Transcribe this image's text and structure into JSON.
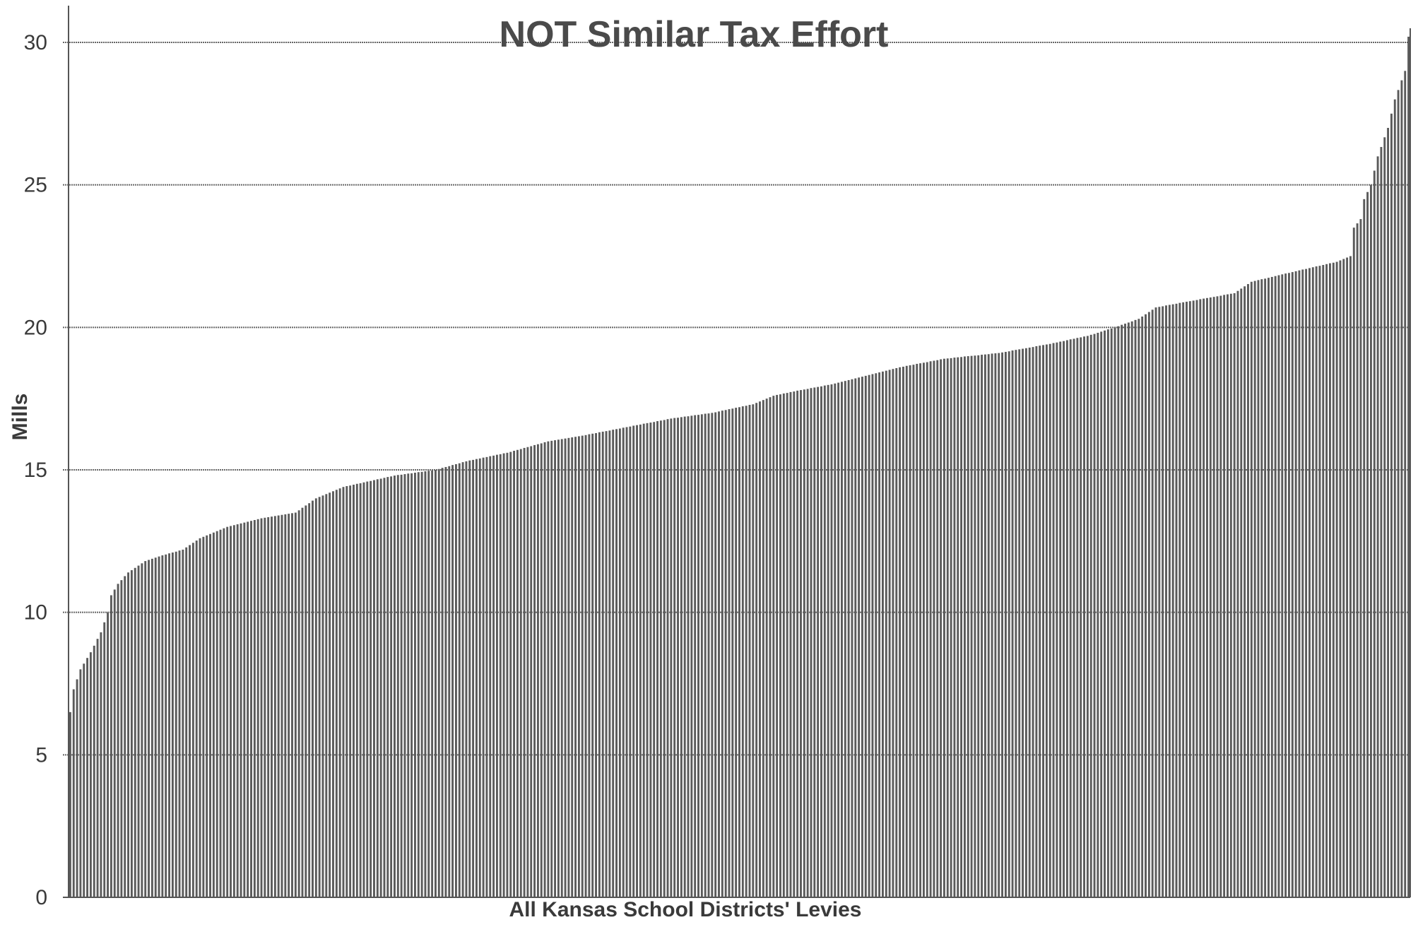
{
  "chart_data": {
    "type": "bar",
    "title": "NOT Similar Tax Effort",
    "xlabel": "All Kansas School Districts' Levies",
    "ylabel": "Mills",
    "ylim": [
      0,
      30
    ],
    "yticks": [
      "0",
      "5",
      "10",
      "15",
      "20",
      "25",
      "30"
    ],
    "grid": true,
    "bar_color": "#5a5a5a",
    "profile": [
      [
        0,
        6.5
      ],
      [
        1,
        7.3
      ],
      [
        3,
        8.0
      ],
      [
        6,
        8.6
      ],
      [
        9,
        9.3
      ],
      [
        11,
        10.0
      ],
      [
        12,
        10.6
      ],
      [
        14,
        11.0
      ],
      [
        17,
        11.4
      ],
      [
        22,
        11.8
      ],
      [
        27,
        12.0
      ],
      [
        33,
        12.2
      ],
      [
        38,
        12.6
      ],
      [
        46,
        13.0
      ],
      [
        56,
        13.3
      ],
      [
        66,
        13.5
      ],
      [
        72,
        14.0
      ],
      [
        80,
        14.4
      ],
      [
        95,
        14.8
      ],
      [
        107,
        15.0
      ],
      [
        116,
        15.3
      ],
      [
        128,
        15.6
      ],
      [
        140,
        16.0
      ],
      [
        150,
        16.2
      ],
      [
        163,
        16.5
      ],
      [
        176,
        16.8
      ],
      [
        188,
        17.0
      ],
      [
        200,
        17.3
      ],
      [
        206,
        17.6
      ],
      [
        214,
        17.8
      ],
      [
        223,
        18.0
      ],
      [
        233,
        18.3
      ],
      [
        243,
        18.6
      ],
      [
        256,
        18.9
      ],
      [
        272,
        19.1
      ],
      [
        286,
        19.4
      ],
      [
        298,
        19.7
      ],
      [
        306,
        20.0
      ],
      [
        313,
        20.3
      ],
      [
        318,
        20.7
      ],
      [
        327,
        20.9
      ],
      [
        341,
        21.2
      ],
      [
        346,
        21.6
      ],
      [
        360,
        22.0
      ],
      [
        371,
        22.3
      ],
      [
        375,
        22.5
      ],
      [
        376,
        23.5
      ],
      [
        378,
        23.8
      ],
      [
        379,
        24.5
      ],
      [
        381,
        25.0
      ],
      [
        383,
        26.0
      ],
      [
        386,
        27.0
      ],
      [
        388,
        28.0
      ],
      [
        391,
        29.0
      ],
      [
        392,
        30.2
      ]
    ]
  }
}
